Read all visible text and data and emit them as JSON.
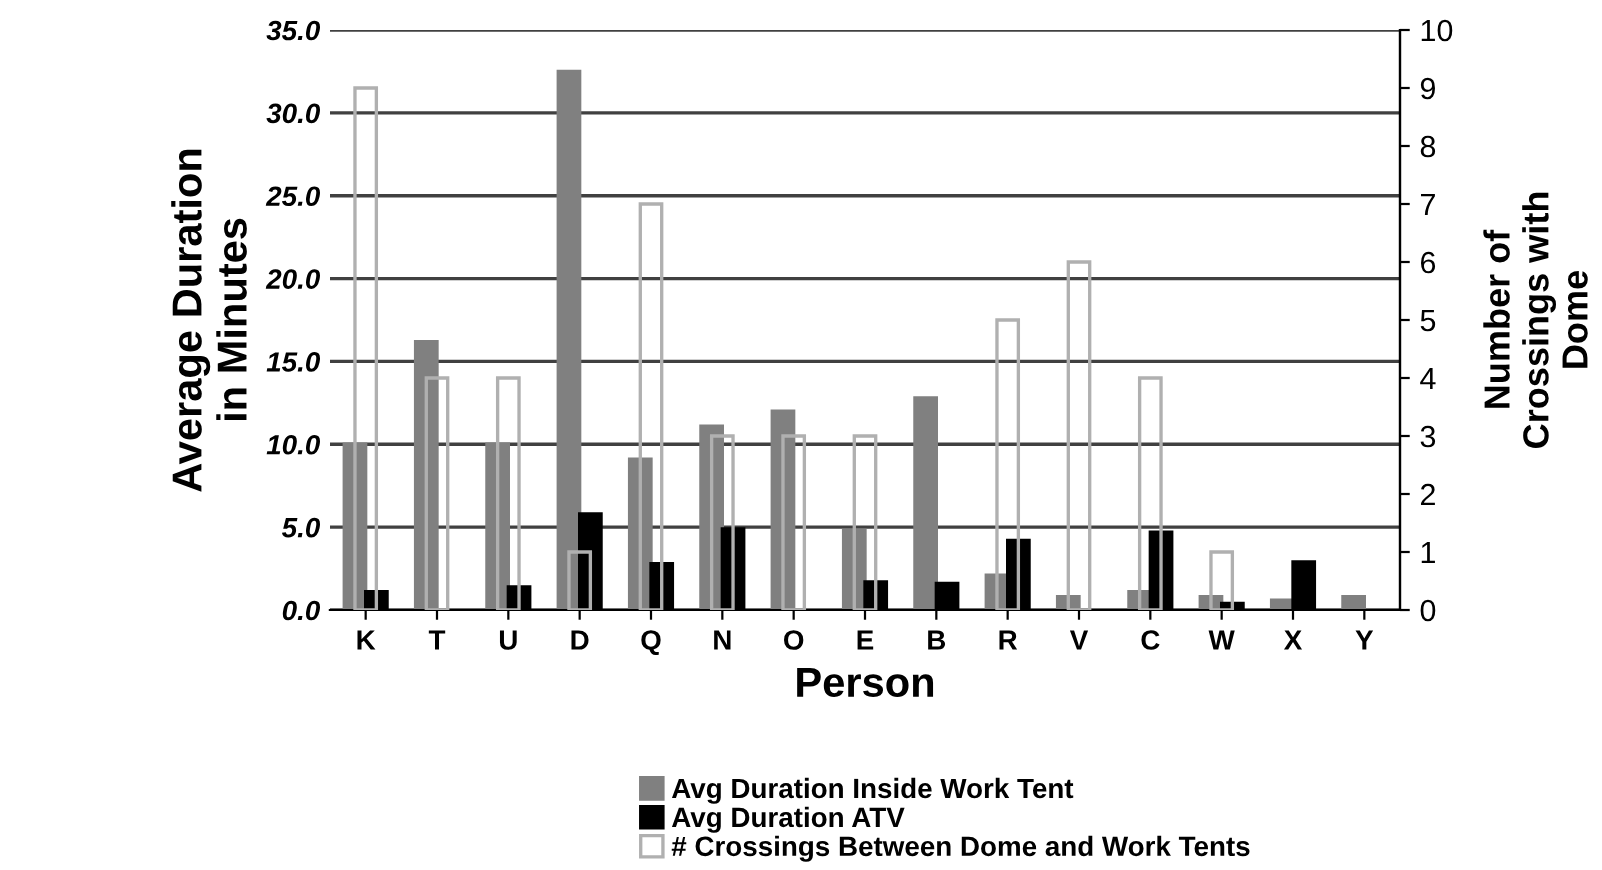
{
  "chart_data": {
    "type": "bar",
    "xlabel": "Person",
    "ylabel": "Average Duration\nin Minutes",
    "y2label": "Number of\nCrossings with\nDome",
    "categories": [
      "K",
      "T",
      "U",
      "D",
      "Q",
      "N",
      "O",
      "E",
      "B",
      "R",
      "V",
      "C",
      "W",
      "X",
      "Y"
    ],
    "series": [
      {
        "name": "Avg Duration Inside Work Tent",
        "color": "#808080",
        "values": [
          10.0,
          16.2,
          10.0,
          32.5,
          9.1,
          11.1,
          12.0,
          4.8,
          12.8,
          2.1,
          0.8,
          1.1,
          0.8,
          0.6,
          0.8
        ]
      },
      {
        "name": "Avg Duration ATV",
        "color": "#000000",
        "values": [
          1.1,
          null,
          1.4,
          5.8,
          2.8,
          4.9,
          null,
          1.7,
          1.6,
          4.2,
          null,
          4.7,
          0.4,
          2.9,
          null
        ]
      },
      {
        "name": "# Crossings Between Dome and Work Tents",
        "color": "#b0b0b0",
        "axis": "y2",
        "values": [
          9,
          4,
          4,
          1,
          7,
          3,
          3,
          3,
          null,
          5,
          6,
          4,
          1,
          null,
          null
        ]
      }
    ],
    "ylim": [
      0,
      35
    ],
    "yticks": [
      {
        "value": 0,
        "label": "0.0"
      },
      {
        "value": 5,
        "label": "5.0"
      },
      {
        "value": 10,
        "label": "10.0"
      },
      {
        "value": 15,
        "label": "15.0"
      },
      {
        "value": 20,
        "label": "20.0"
      },
      {
        "value": 25,
        "label": "25.0"
      },
      {
        "value": 30,
        "label": "30.0"
      },
      {
        "value": 35,
        "label": "35.0"
      }
    ],
    "y2lim": [
      0,
      10
    ],
    "y2ticks": [
      0,
      1,
      2,
      3,
      4,
      5,
      6,
      7,
      8,
      9,
      10
    ],
    "grid": "y",
    "legend": "bottom"
  }
}
